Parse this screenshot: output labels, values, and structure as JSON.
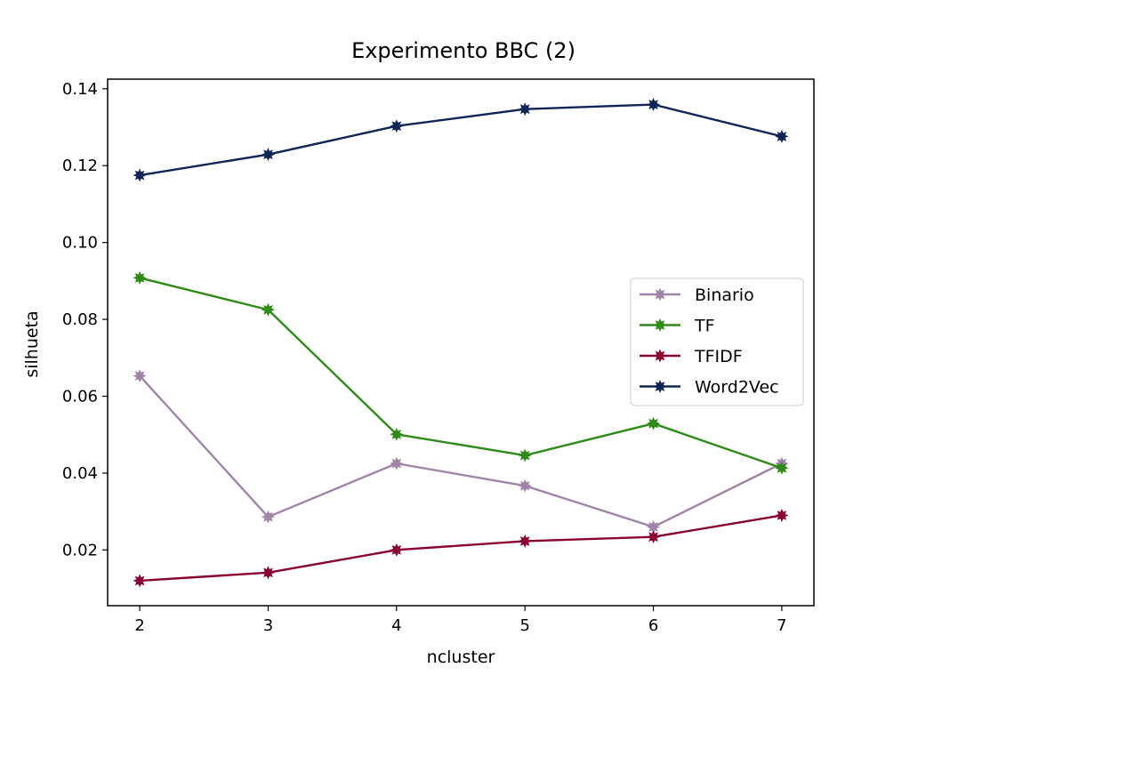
{
  "chart_data": {
    "type": "line",
    "title": "Experimento BBC (2)",
    "xlabel": "ncluster",
    "ylabel": "silhueta",
    "x": [
      2,
      3,
      4,
      5,
      6,
      7
    ],
    "xticks": [
      "2",
      "3",
      "4",
      "5",
      "6",
      "7"
    ],
    "yticks": [
      "0.02",
      "0.04",
      "0.06",
      "0.08",
      "0.10",
      "0.12",
      "0.14"
    ],
    "ylim": [
      0.0055,
      0.1425
    ],
    "xlim": [
      1.75,
      7.25
    ],
    "grid": false,
    "legend_position": "center-right",
    "series": [
      {
        "name": "Binario",
        "color": "#a085a8",
        "values": [
          0.0653,
          0.0286,
          0.0425,
          0.0367,
          0.026,
          0.0425
        ]
      },
      {
        "name": "TF",
        "color": "#2e8b17",
        "values": [
          0.0908,
          0.0825,
          0.0501,
          0.0446,
          0.0529,
          0.0413
        ]
      },
      {
        "name": "TFIDF",
        "color": "#8b0035",
        "values": [
          0.012,
          0.0141,
          0.02,
          0.0223,
          0.0234,
          0.029
        ]
      },
      {
        "name": "Word2Vec",
        "color": "#0f2558",
        "values": [
          0.1175,
          0.1229,
          0.1303,
          0.1347,
          0.1359,
          0.1276
        ]
      }
    ]
  }
}
